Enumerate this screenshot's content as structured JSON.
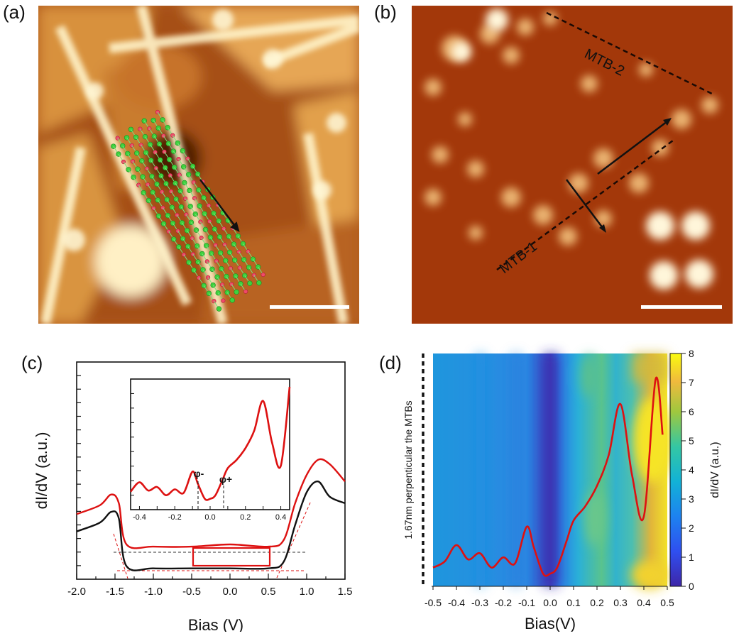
{
  "panels": {
    "a": {
      "label": "(a)"
    },
    "b": {
      "label": "(b)",
      "annotations": [
        "MTB-2",
        "MTB-1"
      ]
    },
    "c": {
      "label": "(c)"
    },
    "d": {
      "label": "(d)"
    }
  },
  "chart_data": [
    {
      "type": "line",
      "panel": "(c)",
      "xlabel": "Bias (V)",
      "ylabel": "dI/dV (a.u.)",
      "xlim": [
        -2.0,
        1.5
      ],
      "xticks": [
        "-2.0",
        "-1.5",
        "-1.0",
        "-0.5",
        "0.0",
        "0.5",
        "1.0",
        "1.5"
      ],
      "series": [
        {
          "color": "#dd1111",
          "x": [
            -2.0,
            -1.7,
            -1.55,
            -1.45,
            -1.35,
            -1.0,
            -0.5,
            0.0,
            0.5,
            0.7,
            0.85,
            1.0,
            1.15,
            1.3,
            1.5
          ],
          "y": [
            0.3,
            0.34,
            0.39,
            0.35,
            0.16,
            0.15,
            0.15,
            0.16,
            0.15,
            0.18,
            0.35,
            0.48,
            0.55,
            0.53,
            0.45
          ]
        },
        {
          "color": "#111111",
          "x": [
            -2.0,
            -1.7,
            -1.55,
            -1.45,
            -1.35,
            -1.0,
            -0.5,
            0.0,
            0.5,
            0.7,
            0.85,
            1.0,
            1.15,
            1.3,
            1.5
          ],
          "y": [
            0.22,
            0.26,
            0.31,
            0.28,
            0.06,
            0.05,
            0.05,
            0.05,
            0.05,
            0.08,
            0.25,
            0.4,
            0.45,
            0.38,
            0.35
          ]
        }
      ]
    },
    {
      "type": "line",
      "panel": "(c) inset",
      "xlim": [
        -0.45,
        0.45
      ],
      "xticks": [
        "-0.4",
        "-0.2",
        "0.0",
        "0.2",
        "0.4"
      ],
      "annotations": [
        "φ-",
        "φ+"
      ],
      "series": [
        {
          "color": "#dd1111",
          "x": [
            -0.45,
            -0.4,
            -0.35,
            -0.3,
            -0.25,
            -0.2,
            -0.15,
            -0.1,
            -0.07,
            -0.03,
            0.0,
            0.03,
            0.07,
            0.1,
            0.15,
            0.2,
            0.25,
            0.3,
            0.35,
            0.4,
            0.45
          ],
          "y": [
            0.08,
            0.16,
            0.09,
            0.12,
            0.05,
            0.1,
            0.07,
            0.25,
            0.15,
            0.02,
            0.02,
            0.05,
            0.18,
            0.28,
            0.35,
            0.45,
            0.6,
            0.85,
            0.5,
            0.3,
            0.97
          ]
        }
      ]
    },
    {
      "type": "heatmap",
      "panel": "(d)",
      "xlabel": "Bias(V)",
      "ylabel": "1.67nm perpenticular the MTBs",
      "colorbar_label": "dI/dV (a.u.)",
      "xticks": [
        "-0.5",
        "-0.4",
        "-0.3",
        "-0.2",
        "-0.1",
        "0.0",
        "0.1",
        "0.2",
        "0.3",
        "0.4",
        "0.5"
      ],
      "colorbar_ticks": [
        "0",
        "1",
        "2",
        "3",
        "4",
        "5",
        "6",
        "7",
        "8"
      ],
      "clim": [
        0,
        8
      ],
      "colormap": "parula"
    }
  ]
}
